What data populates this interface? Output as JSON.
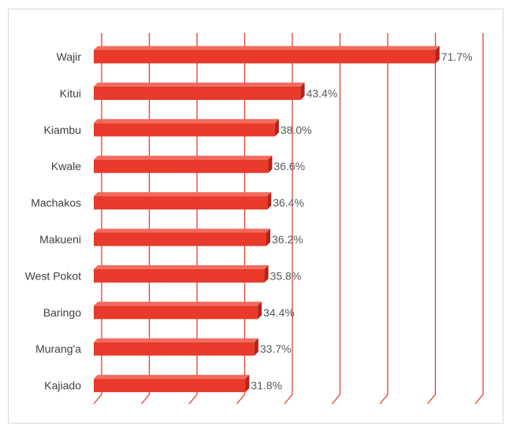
{
  "chart_data": {
    "type": "bar",
    "orientation": "horizontal",
    "categories": [
      "Wajir",
      "Kitui",
      "Kiambu",
      "Kwale",
      "Machakos",
      "Makueni",
      "West Pokot",
      "Baringo",
      "Murang'a",
      "Kajiado"
    ],
    "values": [
      71.7,
      43.4,
      38.0,
      36.6,
      36.4,
      36.2,
      35.8,
      34.4,
      33.7,
      31.8
    ],
    "value_labels": [
      "71.7%",
      "43.4%",
      "38.0%",
      "36.6%",
      "36.4%",
      "36.2%",
      "35.8%",
      "34.4%",
      "33.7%",
      "31.8%"
    ],
    "title": "",
    "xlabel": "",
    "ylabel": "",
    "xlim": [
      0,
      80
    ],
    "grid": true,
    "legend": "none",
    "colors": {
      "bar_front": "#e8392a",
      "bar_top": "#f26b5e",
      "bar_side": "#b3231a",
      "gridline": "#e0402f"
    }
  }
}
